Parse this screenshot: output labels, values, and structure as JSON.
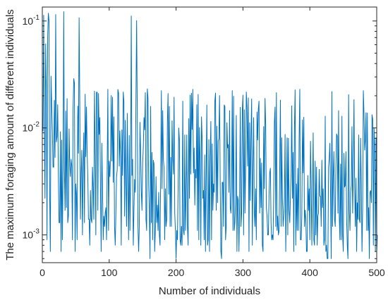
{
  "chart_data": {
    "type": "line",
    "title": "",
    "xlabel": "Number of individuals",
    "ylabel": "The maximum foraging amount of different individuals",
    "xlim": [
      0,
      500
    ],
    "ylim": [
      0.00055,
      0.135
    ],
    "y_scale": "log",
    "grid": false,
    "legend": "none",
    "x_ticks": [
      "0",
      "100",
      "200",
      "300",
      "400",
      "500"
    ],
    "y_ticks": [
      {
        "value": 0.001,
        "base": "10",
        "exponent": "-3"
      },
      {
        "value": 0.01,
        "base": "10",
        "exponent": "-2"
      },
      {
        "value": 0.1,
        "base": "10",
        "exponent": "-1"
      }
    ],
    "series_color": "#0072BD",
    "series": [
      {
        "x_start": 1,
        "x_step": 1,
        "values": [
          0.0093,
          0.1131,
          0.0106,
          0.0022,
          0.0611,
          0.0219,
          0.0009,
          0.0721,
          0.1182,
          0.1008,
          0.0024,
          0.0007,
          0.0305,
          0.0169,
          0.0094,
          0.0043,
          0.0043,
          0.0181,
          0.0053,
          0.1149,
          0.0074,
          0.0083,
          0.0165,
          0.0034,
          0.0013,
          0.0013,
          0.0092,
          0.0007,
          0.0077,
          0.0009,
          0.0042,
          0.1221,
          0.0041,
          0.0017,
          0.0144,
          0.0018,
          0.0188,
          0.0013,
          0.0015,
          0.0098,
          0.0045,
          0.0035,
          0.0051,
          0.0044,
          0.0009,
          0.0151,
          0.0289,
          0.0264,
          0.0007,
          0.003,
          0.0024,
          0.0009,
          0.016,
          0.0058,
          0.1072,
          0.0177,
          0.0014,
          0.0038,
          0.0062,
          0.001,
          0.0045,
          0.009,
          0.0013,
          0.0207,
          0.0054,
          0.0157,
          0.0059,
          0.0035,
          0.0014,
          0.0014,
          0.0008,
          0.0026,
          0.0014,
          0.0013,
          0.0043,
          0.0027,
          0.0014,
          0.0221,
          0.0066,
          0.001,
          0.0216,
          0.0216,
          0.0017,
          0.021,
          0.0087,
          0.0125,
          0.0026,
          0.0007,
          0.0072,
          0.0028,
          0.0009,
          0.0015,
          0.0012,
          0.0016,
          0.0018,
          0.0009,
          0.0045,
          0.023,
          0.0011,
          0.0049,
          0.0035,
          0.0058,
          0.0201,
          0.0049,
          0.0194,
          0.0031,
          0.0127,
          0.0012,
          0.0008,
          0.0016,
          0.0035,
          0.0041,
          0.0229,
          0.0212,
          0.0044,
          0.0094,
          0.0052,
          0.0008,
          0.0096,
          0.0036,
          0.0217,
          0.0176,
          0.0015,
          0.0118,
          0.003,
          0.0012,
          0.0137,
          0.003,
          0.0009,
          0.0085,
          0.0011,
          0.0031,
          0.1112,
          0.0036,
          0.0051,
          0.0008,
          0.0017,
          0.0033,
          0.0025,
          0.0185,
          0.1008,
          0.0136,
          0.0012,
          0.0007,
          0.0012,
          0.0113,
          0.0061,
          0.0026,
          0.0017,
          0.0047,
          0.0066,
          0.0125,
          0.0096,
          0.0214,
          0.0014,
          0.0011,
          0.0232,
          0.0192,
          0.0029,
          0.0017,
          0.0006,
          0.0159,
          0.0013,
          0.0059,
          0.0009,
          0.005,
          0.0046,
          0.0007,
          0.0011,
          0.0035,
          0.0013,
          0.0019,
          0.0011,
          0.0025,
          0.001,
          0.0008,
          0.0037,
          0.0223,
          0.0027,
          0.0145,
          0.0051,
          0.0042,
          0.0009,
          0.0027,
          0.0012,
          0.0014,
          0.0113,
          0.021,
          0.0024,
          0.0159,
          0.0012,
          0.0053,
          0.0012,
          0.0117,
          0.0052,
          0.0037,
          0.0194,
          0.0016,
          0.0011,
          0.0006,
          0.0011,
          0.0009,
          0.0026,
          0.01,
          0.0077,
          0.0009,
          0.0008,
          0.0012,
          0.0008,
          0.0178,
          0.0011,
          0.001,
          0.0086,
          0.0011,
          0.0023,
          0.0086,
          0.0012,
          0.0008,
          0.0122,
          0.0022,
          0.0203,
          0.0037,
          0.0211,
          0.0097,
          0.023,
          0.0038,
          0.0065,
          0.0019,
          0.0041,
          0.0034,
          0.0165,
          0.0011,
          0.0206,
          0.0009,
          0.0101,
          0.005,
          0.0008,
          0.0127,
          0.0079,
          0.0022,
          0.0026,
          0.0009,
          0.0056,
          0.0007,
          0.0037,
          0.0164,
          0.0008,
          0.0009,
          0.0078,
          0.0007,
          0.0052,
          0.0115,
          0.0009,
          0.0071,
          0.0017,
          0.003,
          0.0025,
          0.0179,
          0.0212,
          0.0017,
          0.0104,
          0.002,
          0.0075,
          0.0079,
          0.0201,
          0.003,
          0.0007,
          0.0006,
          0.0031,
          0.0031,
          0.0012,
          0.0164,
          0.0159,
          0.0009,
          0.0012,
          0.0112,
          0.0065,
          0.007,
          0.0025,
          0.0145,
          0.0018,
          0.0016,
          0.0028,
          0.0223,
          0.0011,
          0.0198,
          0.0011,
          0.0013,
          0.0022,
          0.0131,
          0.0007,
          0.0023,
          0.0021,
          0.0007,
          0.002,
          0.0156,
          0.0012,
          0.0016,
          0.0145,
          0.0203,
          0.001,
          0.0148,
          0.0016,
          0.0043,
          0.0217,
          0.0154,
          0.0044,
          0.0191,
          0.0007,
          0.0112,
          0.0021,
          0.0082,
          0.0187,
          0.0008,
          0.0043,
          0.0125,
          0.0016,
          0.0012,
          0.0027,
          0.0009,
          0.0141,
          0.0077,
          0.015,
          0.0178,
          0.0016,
          0.0052,
          0.0018,
          0.0047,
          0.0008,
          0.0007,
          0.0103,
          0.0027,
          0.0189,
          0.0106,
          0.0018,
          0.0015,
          0.001,
          0.001,
          0.0023,
          0.0038,
          0.0042,
          0.0013,
          0.0009,
          0.001,
          0.0009,
          0.0024,
          0.0113,
          0.0157,
          0.0012,
          0.0214,
          0.0011,
          0.0015,
          0.001,
          0.0011,
          0.0044,
          0.0182,
          0.0012,
          0.0081,
          0.0022,
          0.0012,
          0.0015,
          0.0022,
          0.0087,
          0.0007,
          0.0024,
          0.0081,
          0.001,
          0.008,
          0.0017,
          0.0013,
          0.0023,
          0.0038,
          0.0161,
          0.0022,
          0.0059,
          0.0007,
          0.0101,
          0.0227,
          0.0008,
          0.003,
          0.0011,
          0.0042,
          0.0011,
          0.008,
          0.023,
          0.0009,
          0.0009,
          0.0015,
          0.0119,
          0.0038,
          0.0126,
          0.0012,
          0.0017,
          0.0014,
          0.0007,
          0.0007,
          0.0036,
          0.0017,
          0.0027,
          0.0009,
          0.0075,
          0.0031,
          0.0008,
          0.0023,
          0.009,
          0.0009,
          0.0008,
          0.0049,
          0.001,
          0.0043,
          0.0008,
          0.0015,
          0.0016,
          0.0041,
          0.0023,
          0.0023,
          0.0012,
          0.005,
          0.0018,
          0.0027,
          0.0008,
          0.0009,
          0.0129,
          0.0007,
          0.0008,
          0.0006,
          0.0006,
          0.0043,
          0.0052,
          0.0072,
          0.0023,
          0.0006,
          0.0219,
          0.0012,
          0.0035,
          0.006,
          0.0014,
          0.0012,
          0.0043,
          0.0088,
          0.0084,
          0.0016,
          0.0145,
          0.0015,
          0.0009,
          0.0046,
          0.0009,
          0.0129,
          0.001,
          0.0007,
          0.0058,
          0.0028,
          0.0029,
          0.006,
          0.0014,
          0.0008,
          0.0006,
          0.0205,
          0.0017,
          0.0011,
          0.0025,
          0.0029,
          0.0103,
          0.0016,
          0.0035,
          0.0184,
          0.0028,
          0.0012,
          0.0034,
          0.0007,
          0.002,
          0.0014,
          0.0086,
          0.0014,
          0.0013,
          0.008,
          0.0029,
          0.0007,
          0.0018,
          0.0223,
          0.0134,
          0.0062,
          0.0078,
          0.0139,
          0.0011,
          0.0138,
          0.0011,
          0.0018,
          0.0006,
          0.0025,
          0.0026,
          0.002,
          0.0133,
          0.0121,
          0.0008,
          0.01,
          0.0068,
          0.0007,
          0.0081,
          0.0007,
          0.001
        ]
      }
    ]
  }
}
